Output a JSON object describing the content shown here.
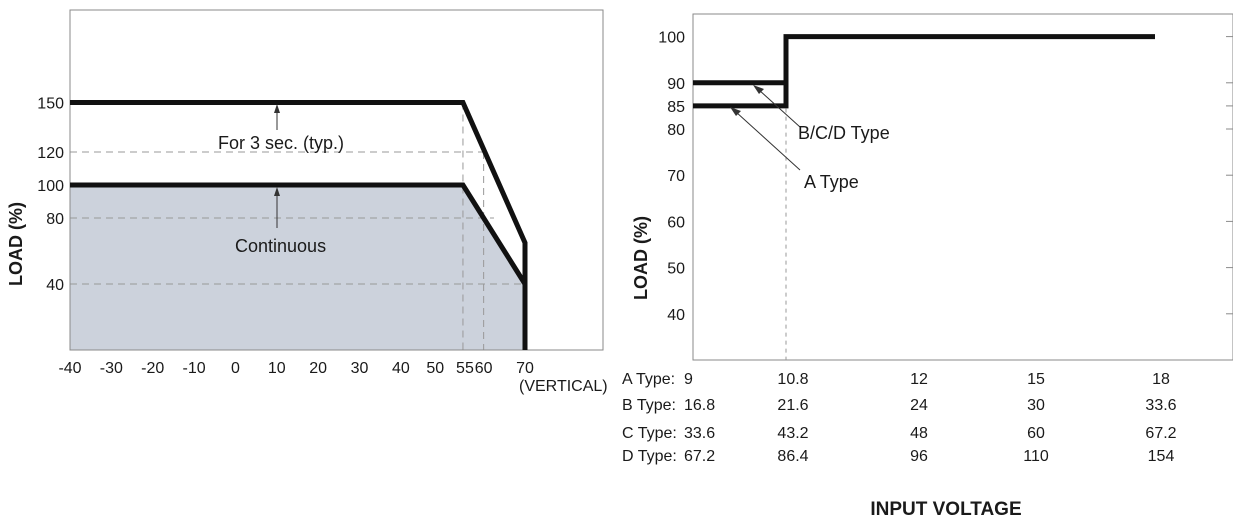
{
  "chart_data": [
    {
      "type": "line",
      "ylabel": "LOAD (%)",
      "xlabel": "",
      "x_unit_label": "(VERTICAL)",
      "xlim": [
        -40,
        95
      ],
      "ylim": [
        0,
        200
      ],
      "x_ticks": [
        -40,
        -30,
        -20,
        -10,
        0,
        10,
        20,
        30,
        40,
        50,
        55,
        60,
        70
      ],
      "y_ticks": [
        40,
        80,
        100,
        120,
        150
      ],
      "grid": "dashed reference lines",
      "annotations": [
        "For 3 sec. (typ.)",
        "Continuous"
      ],
      "series": [
        {
          "x": [
            -40,
            55,
            70,
            70
          ],
          "y": [
            150,
            150,
            65,
            0
          ]
        },
        {
          "x": [
            -40,
            55,
            70,
            70
          ],
          "y": [
            100,
            100,
            40,
            0
          ]
        }
      ],
      "reference_lines": {
        "h": [
          120,
          80,
          40
        ],
        "v": [
          55,
          60
        ]
      },
      "shaded_region": "area under continuous curve"
    },
    {
      "type": "line",
      "ylabel": "LOAD (%)",
      "xlabel": "INPUT VOLTAGE",
      "ylim": [
        30,
        105
      ],
      "y_ticks": [
        40,
        50,
        60,
        70,
        80,
        85,
        90,
        100
      ],
      "annotations": [
        "B/C/D Type",
        "A Type"
      ],
      "series": [
        {
          "x": [
            9,
            10.8,
            10.8,
            18
          ],
          "y": [
            85,
            85,
            100,
            100
          ]
        },
        {
          "x": [
            9,
            10.8
          ],
          "y": [
            90,
            90
          ]
        }
      ],
      "reference_lines": {
        "v": [
          10.8
        ]
      },
      "x_table": {
        "headers": [
          "A Type:",
          "B Type:",
          "C Type:",
          "D Type:"
        ],
        "rows": [
          [
            "9",
            "10.8",
            "12",
            "15",
            "18"
          ],
          [
            "16.8",
            "21.6",
            "24",
            "30",
            "33.6"
          ],
          [
            "33.6",
            "43.2",
            "48",
            "60",
            "67.2"
          ],
          [
            "67.2",
            "86.4",
            "96",
            "110",
            "154"
          ]
        ]
      }
    }
  ]
}
